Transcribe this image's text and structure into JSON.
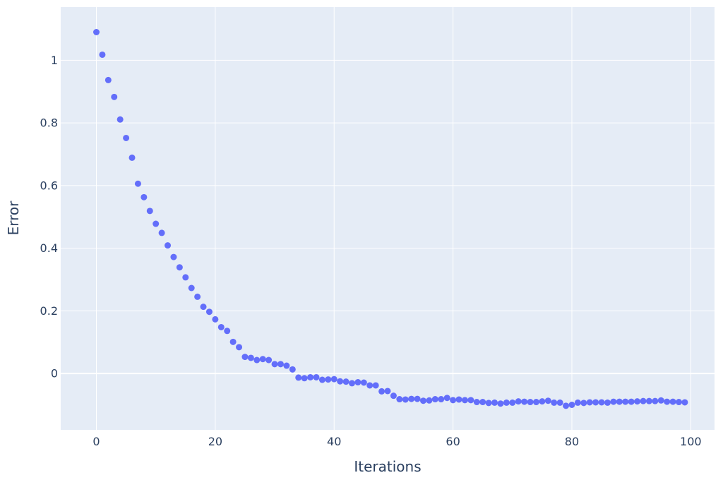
{
  "chart_data": {
    "type": "scatter",
    "title": "",
    "xlabel": "Iterations",
    "ylabel": "Error",
    "xlim": [
      -6,
      104
    ],
    "ylim": [
      -0.18,
      1.17
    ],
    "x_ticks": [
      0,
      20,
      40,
      60,
      80,
      100
    ],
    "y_ticks": [
      0,
      0.2,
      0.4,
      0.6,
      0.8,
      1
    ],
    "x_tick_labels": [
      "0",
      "20",
      "40",
      "60",
      "80",
      "100"
    ],
    "y_tick_labels": [
      "0",
      "0.2",
      "0.4",
      "0.6",
      "0.8",
      "1"
    ],
    "grid": true,
    "colors": {
      "marker": "#636efa",
      "plot_bg": "#e5ecf6",
      "grid": "#ffffff",
      "text": "#2a3f5f"
    },
    "series": [
      {
        "x": [
          0,
          1,
          2,
          3,
          4,
          5,
          6,
          7,
          8,
          9,
          10,
          11,
          12,
          13,
          14,
          15,
          16,
          17,
          18,
          19,
          20,
          21,
          22,
          23,
          24,
          25,
          26,
          27,
          28,
          29,
          30,
          31,
          32,
          33,
          34,
          35,
          36,
          37,
          38,
          39,
          40,
          41,
          42,
          43,
          44,
          45,
          46,
          47,
          48,
          49,
          50,
          51,
          52,
          53,
          54,
          55,
          56,
          57,
          58,
          59,
          60,
          61,
          62,
          63,
          64,
          65,
          66,
          67,
          68,
          69,
          70,
          71,
          72,
          73,
          74,
          75,
          76,
          77,
          78,
          79,
          80,
          81,
          82,
          83,
          84,
          85,
          86,
          87,
          88,
          89,
          90,
          91,
          92,
          93,
          94,
          95,
          96,
          97,
          98,
          99
        ],
        "y": [
          1.09,
          1.018,
          0.937,
          0.883,
          0.811,
          0.752,
          0.689,
          0.606,
          0.563,
          0.519,
          0.478,
          0.449,
          0.409,
          0.372,
          0.339,
          0.307,
          0.273,
          0.245,
          0.213,
          0.197,
          0.173,
          0.148,
          0.136,
          0.101,
          0.084,
          0.053,
          0.05,
          0.043,
          0.046,
          0.043,
          0.03,
          0.03,
          0.025,
          0.013,
          -0.013,
          -0.015,
          -0.012,
          -0.012,
          -0.02,
          -0.019,
          -0.018,
          -0.025,
          -0.026,
          -0.031,
          -0.028,
          -0.029,
          -0.038,
          -0.038,
          -0.057,
          -0.056,
          -0.071,
          -0.082,
          -0.083,
          -0.081,
          -0.081,
          -0.087,
          -0.086,
          -0.082,
          -0.082,
          -0.078,
          -0.085,
          -0.083,
          -0.085,
          -0.085,
          -0.091,
          -0.091,
          -0.094,
          -0.093,
          -0.096,
          -0.093,
          -0.093,
          -0.089,
          -0.09,
          -0.091,
          -0.091,
          -0.089,
          -0.087,
          -0.093,
          -0.093,
          -0.103,
          -0.1,
          -0.093,
          -0.094,
          -0.092,
          -0.092,
          -0.092,
          -0.093,
          -0.09,
          -0.09,
          -0.09,
          -0.09,
          -0.089,
          -0.088,
          -0.088,
          -0.088,
          -0.086,
          -0.09,
          -0.09,
          -0.091,
          -0.092
        ]
      }
    ]
  }
}
